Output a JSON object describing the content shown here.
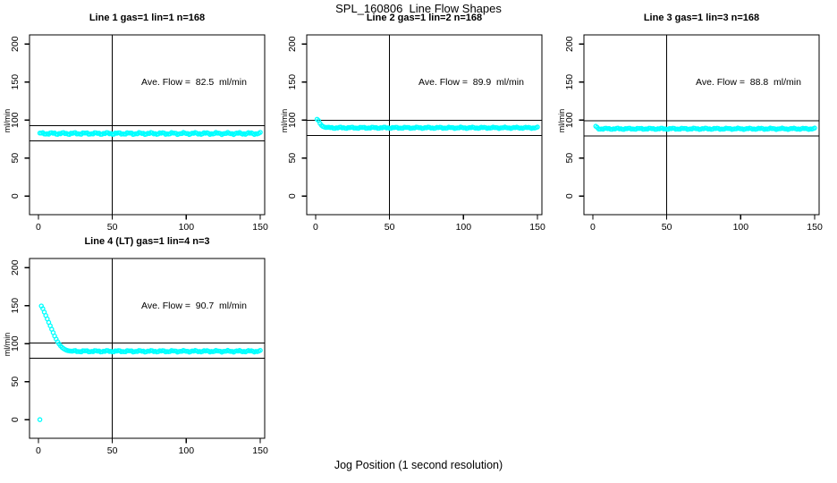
{
  "page": {
    "title": "SPL_160806  Line Flow Shapes",
    "xlabel": "Jog Position (1 second resolution)"
  },
  "colors": {
    "points": "#00ffff",
    "axis": "#000000",
    "background": "#ffffff",
    "text": "#000000"
  },
  "chart_data": [
    {
      "type": "scatter",
      "title": "Line 1 gas=1 lin=1 n=168",
      "annotation": "Ave. Flow =  82.5  ml/min",
      "ave_flow_ml_min": 82.5,
      "n": 168,
      "ylabel": "ml/min",
      "x_ticks": [
        0,
        50,
        100,
        150
      ],
      "y_ticks": [
        0,
        50,
        100,
        150,
        200
      ],
      "xlim": [
        -6,
        153
      ],
      "ylim": [
        -24.5,
        212
      ],
      "vline_x": 50,
      "ref_lines": [
        92.5,
        72.5
      ],
      "series": {
        "head": [
          [
            1,
            82.8
          ]
        ],
        "flat": {
          "x_start": 2,
          "x_end": 150,
          "y": 82.3,
          "noise": 1.5
        },
        "outliers": []
      }
    },
    {
      "type": "scatter",
      "title": "Line 2 gas=1 lin=2 n=168",
      "annotation": "Ave. Flow =  89.9  ml/min",
      "ave_flow_ml_min": 89.9,
      "n": 168,
      "ylabel": "ml/min",
      "x_ticks": [
        0,
        50,
        100,
        150
      ],
      "y_ticks": [
        0,
        50,
        100,
        150,
        200
      ],
      "xlim": [
        -6,
        153
      ],
      "ylim": [
        -24.5,
        212
      ],
      "vline_x": 50,
      "ref_lines": [
        99.9,
        79.9
      ],
      "series": {
        "head": [
          [
            1,
            101
          ],
          [
            2,
            99.3
          ],
          [
            3,
            95.5
          ],
          [
            4,
            93
          ],
          [
            5,
            91.5
          ],
          [
            6,
            90.7
          ],
          [
            7,
            90.2
          ]
        ],
        "flat": {
          "x_start": 8,
          "x_end": 150,
          "y": 89.8,
          "noise": 1.0
        },
        "outliers": []
      }
    },
    {
      "type": "scatter",
      "title": "Line 3 gas=1 lin=3 n=168",
      "annotation": "Ave. Flow =  88.8  ml/min",
      "ave_flow_ml_min": 88.8,
      "n": 168,
      "ylabel": "ml/min",
      "x_ticks": [
        0,
        50,
        100,
        150
      ],
      "y_ticks": [
        0,
        50,
        100,
        150,
        200
      ],
      "xlim": [
        -6,
        153
      ],
      "ylim": [
        -24.5,
        212
      ],
      "vline_x": 50,
      "ref_lines": [
        98.8,
        78.8
      ],
      "series": {
        "head": [
          [
            2,
            91.8
          ],
          [
            3,
            90.3
          ]
        ],
        "flat": {
          "x_start": 4,
          "x_end": 150,
          "y": 88.5,
          "noise": 1.0
        },
        "outliers": []
      }
    },
    {
      "type": "scatter",
      "title": "Line 4 (LT) gas=1 lin=4 n=3",
      "annotation": "Ave. Flow =  90.7  ml/min",
      "ave_flow_ml_min": 90.7,
      "n": 3,
      "ylabel": "ml/min",
      "x_ticks": [
        0,
        50,
        100,
        150
      ],
      "y_ticks": [
        0,
        50,
        100,
        150,
        200
      ],
      "xlim": [
        -6,
        153
      ],
      "ylim": [
        -24.5,
        212
      ],
      "vline_x": 50,
      "ref_lines": [
        100.7,
        80.7
      ],
      "series": {
        "head": [
          [
            2,
            149.5
          ],
          [
            3,
            146
          ],
          [
            4,
            141.5
          ],
          [
            5,
            137
          ],
          [
            6,
            132.5
          ],
          [
            7,
            128
          ],
          [
            8,
            123.5
          ],
          [
            9,
            119
          ],
          [
            10,
            114.5
          ],
          [
            11,
            110
          ],
          [
            12,
            106
          ],
          [
            13,
            102.5
          ],
          [
            14,
            99.5
          ],
          [
            15,
            97
          ],
          [
            16,
            95
          ],
          [
            17,
            93.5
          ],
          [
            18,
            92.3
          ],
          [
            19,
            91.4
          ],
          [
            20,
            90.8
          ],
          [
            21,
            90.4
          ],
          [
            22,
            90.2
          ],
          [
            23,
            90.1
          ]
        ],
        "flat": {
          "x_start": 24,
          "x_end": 150,
          "y": 90,
          "noise": 1.2
        },
        "outliers": [
          [
            1,
            0
          ]
        ]
      }
    }
  ]
}
